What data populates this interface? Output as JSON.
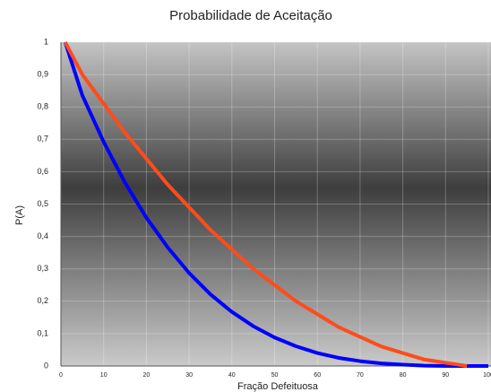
{
  "chart_data": {
    "type": "line",
    "title": "Probabilidade de Aceitação",
    "x_label": "Fração Defeituosa",
    "y_label": "P(A)",
    "x": [
      1,
      5,
      10,
      15,
      20,
      25,
      30,
      35,
      40,
      45,
      50,
      55,
      60,
      65,
      70,
      75,
      80,
      85,
      90,
      95,
      100
    ],
    "series": [
      {
        "color": "#0000ff",
        "values": [
          1,
          0.836,
          0.692,
          0.566,
          0.458,
          0.366,
          0.287,
          0.221,
          0.167,
          0.123,
          0.088,
          0.061,
          0.04,
          0.025,
          0.015,
          0.008,
          0.004,
          0.001,
          0,
          0,
          0
        ]
      },
      {
        "color": "#ff4c1a",
        "values": [
          1,
          0.9,
          0.81,
          0.72,
          0.64,
          0.56,
          0.49,
          0.42,
          0.36,
          0.3,
          0.25,
          0.2,
          0.16,
          0.12,
          0.09,
          0.06,
          0.04,
          0.02,
          0.01,
          0,
          null
        ]
      }
    ],
    "xlim": [
      0,
      100
    ],
    "ylim": [
      0,
      1
    ],
    "xticks": [
      0,
      10,
      20,
      30,
      40,
      50,
      60,
      70,
      80,
      90,
      100
    ],
    "yticks": [
      0,
      {
        "value": 0.1,
        "label": "0,1"
      },
      {
        "value": 0.2,
        "label": "0,2"
      },
      {
        "value": 0.3,
        "label": "0,3"
      },
      {
        "value": 0.4,
        "label": "0,4"
      },
      {
        "value": 0.5,
        "label": "0,5"
      },
      {
        "value": 0.6,
        "label": "0,6"
      },
      {
        "value": 0.7,
        "label": "0,7"
      },
      {
        "value": 0.8,
        "label": "0,8"
      },
      {
        "value": 0.9,
        "label": "0,9"
      },
      1
    ],
    "grid": true
  }
}
